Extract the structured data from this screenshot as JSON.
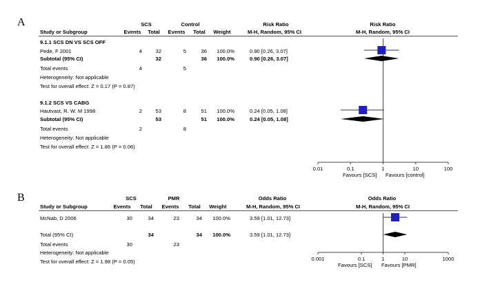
{
  "chart_data": [
    {
      "type": "forest",
      "panel_label": "A",
      "group_headers": [
        "SCS",
        "Control"
      ],
      "columns": [
        "Study or Subgroup",
        "Events",
        "Total",
        "Events",
        "Total",
        "Weight",
        "M-H, Random, 95% CI",
        "M-H, Random, 95% CI"
      ],
      "effect_header": "Risk Ratio",
      "plot_header": "Risk Ratio",
      "scale": "log",
      "xticks": [
        "0.01",
        "0.1",
        "1",
        "10",
        "100"
      ],
      "xticks_values": [
        0.01,
        0.1,
        1,
        10,
        100
      ],
      "favours_left": "Favours [SCS]",
      "favours_right": "Favours [control]",
      "subgroups": [
        {
          "title": "9.1.1 SCS DN VS SCS OFF",
          "studies": [
            {
              "name": "Pede, F 2001",
              "e1": "4",
              "n1": "32",
              "e2": "5",
              "n2": "36",
              "weight": "100.0%",
              "ci_text": "0.90 [0.26, 3.07]",
              "est": 0.9,
              "lo": 0.26,
              "hi": 3.07
            }
          ],
          "subtotal": {
            "label": "Subtotal (95% CI)",
            "n1": "32",
            "n2": "36",
            "weight": "100.0%",
            "ci_text": "0.90 [0.26, 3.07]",
            "est": 0.9,
            "lo": 0.26,
            "hi": 3.07
          },
          "total_events": {
            "label": "Total events",
            "e1": "4",
            "e2": "5"
          },
          "heterogeneity": "Heterogeneity: Not applicable",
          "overall": "Test for overall effect: Z = 0.17 (P = 0.87)"
        },
        {
          "title": "9.1.2 SCS VS CABG",
          "studies": [
            {
              "name": "Hautvast, R. W. M 1998",
              "e1": "2",
              "n1": "53",
              "e2": "8",
              "n2": "51",
              "weight": "100.0%",
              "ci_text": "0.24 [0.05, 1.08]",
              "est": 0.24,
              "lo": 0.05,
              "hi": 1.08
            }
          ],
          "subtotal": {
            "label": "Subtotal (95% CI)",
            "n1": "53",
            "n2": "51",
            "weight": "100.0%",
            "ci_text": "0.24 [0.05, 1.08]",
            "est": 0.24,
            "lo": 0.05,
            "hi": 1.08
          },
          "total_events": {
            "label": "Total events",
            "e1": "2",
            "e2": "8"
          },
          "heterogeneity": "Heterogeneity: Not applicable",
          "overall": "Test for overall effect: Z = 1.86 (P = 0.06)"
        }
      ]
    },
    {
      "type": "forest",
      "panel_label": "B",
      "group_headers": [
        "SCS",
        "PMR"
      ],
      "columns": [
        "Study or Subgroup",
        "Events",
        "Total",
        "Events",
        "Total",
        "Weight",
        "M-H, Random, 95% CI",
        "M-H, Random, 95% CI"
      ],
      "effect_header": "Odds Ratio",
      "plot_header": "Odds Ratio",
      "scale": "log",
      "xticks": [
        "0.001",
        "0.1",
        "1",
        "10",
        "1000"
      ],
      "xticks_values": [
        0.001,
        0.1,
        1,
        10,
        1000
      ],
      "favours_left": "Favours [SCS]",
      "favours_right": "Favours [PMR]",
      "studies": [
        {
          "name": "McNab, D 2006",
          "e1": "30",
          "n1": "34",
          "e2": "23",
          "n2": "34",
          "weight": "100.0%",
          "ci_text": "3.59 [1.01, 12.73]",
          "est": 3.59,
          "lo": 1.01,
          "hi": 12.73
        }
      ],
      "total": {
        "label": "Total (95% CI)",
        "n1": "34",
        "n2": "34",
        "weight": "100.0%",
        "ci_text": "3.59 [1.01, 12.73]",
        "est": 3.59,
        "lo": 1.01,
        "hi": 12.73
      },
      "total_events": {
        "label": "Total events",
        "e1": "30",
        "e2": "23"
      },
      "heterogeneity": "Heterogeneity: Not applicable",
      "overall": "Test for overall effect: Z = 1.98 (P = 0.05)"
    }
  ]
}
